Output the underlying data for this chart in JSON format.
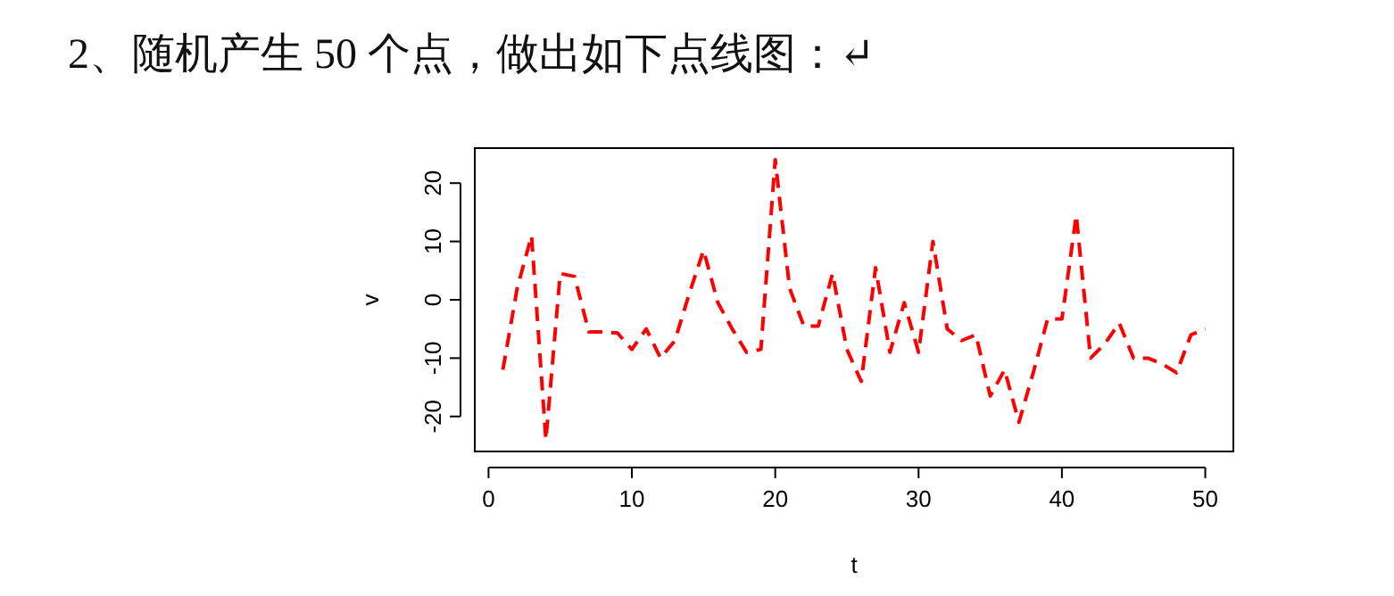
{
  "chart_data": {
    "type": "line",
    "title": "2、随机产生 50 个点，做出如下点线图：↵",
    "xlabel": "t",
    "ylabel": "v",
    "x": [
      1,
      2,
      3,
      4,
      5,
      6,
      7,
      8,
      9,
      10,
      11,
      12,
      13,
      14,
      15,
      16,
      17,
      18,
      19,
      20,
      21,
      22,
      23,
      24,
      25,
      26,
      27,
      28,
      29,
      30,
      31,
      32,
      33,
      34,
      35,
      36,
      37,
      38,
      39,
      40,
      41,
      42,
      43,
      44,
      45,
      46,
      47,
      48,
      49,
      50
    ],
    "series": [
      {
        "color": "#ff0000",
        "values": [
          -12,
          2,
          11,
          -24,
          4.5,
          4,
          -5.5,
          -5.5,
          -5.7,
          -8.5,
          -5,
          -10,
          -7,
          1,
          8.5,
          -0.5,
          -5,
          -9,
          -8.5,
          24,
          2,
          -4.5,
          -4.5,
          4.5,
          -8.5,
          -14,
          5.5,
          -9,
          -0.5,
          -9,
          10,
          -5,
          -7,
          -6,
          -16.5,
          -12,
          -21,
          -12.5,
          -3.3,
          -3.3,
          14.5,
          -10,
          -7.5,
          -4,
          -10,
          -10,
          -11,
          -12.5,
          -6,
          -5
        ]
      }
    ],
    "xlim": [
      -0.96,
      51.96
    ],
    "ylim": [
      -26,
      26
    ],
    "xticks": [
      0,
      10,
      20,
      30,
      40,
      50
    ],
    "yticks": [
      -20,
      -10,
      0,
      10,
      20
    ],
    "line_style": "dashed",
    "marker": "none",
    "grid": false
  }
}
